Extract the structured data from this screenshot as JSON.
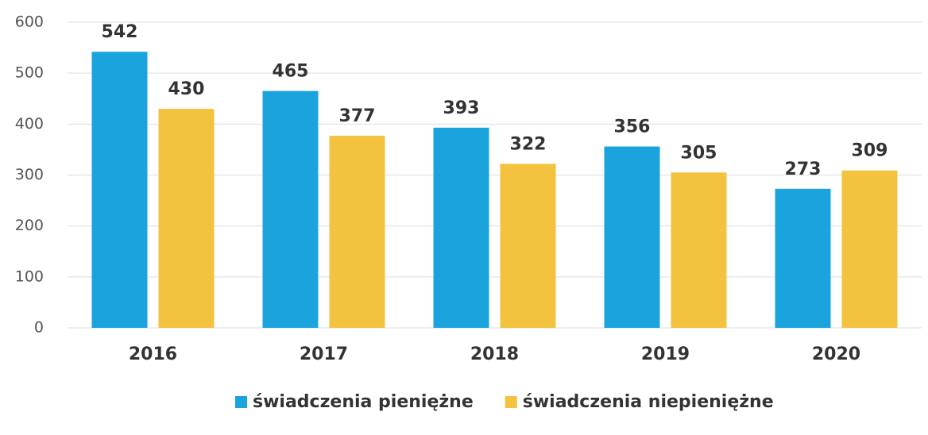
{
  "chart_data": {
    "type": "bar",
    "categories": [
      "2016",
      "2017",
      "2018",
      "2019",
      "2020"
    ],
    "series": [
      {
        "name": "świadczenia pieniężne",
        "color": "#1ba3dd",
        "values": [
          542,
          465,
          393,
          356,
          273
        ]
      },
      {
        "name": "świadczenia niepieniężne",
        "color": "#f3c23f",
        "values": [
          430,
          377,
          322,
          305,
          309
        ]
      }
    ],
    "ylim": [
      0,
      600
    ],
    "yticks": [
      0,
      100,
      200,
      300,
      400,
      500,
      600
    ],
    "grid": true,
    "legend": "bottom"
  }
}
